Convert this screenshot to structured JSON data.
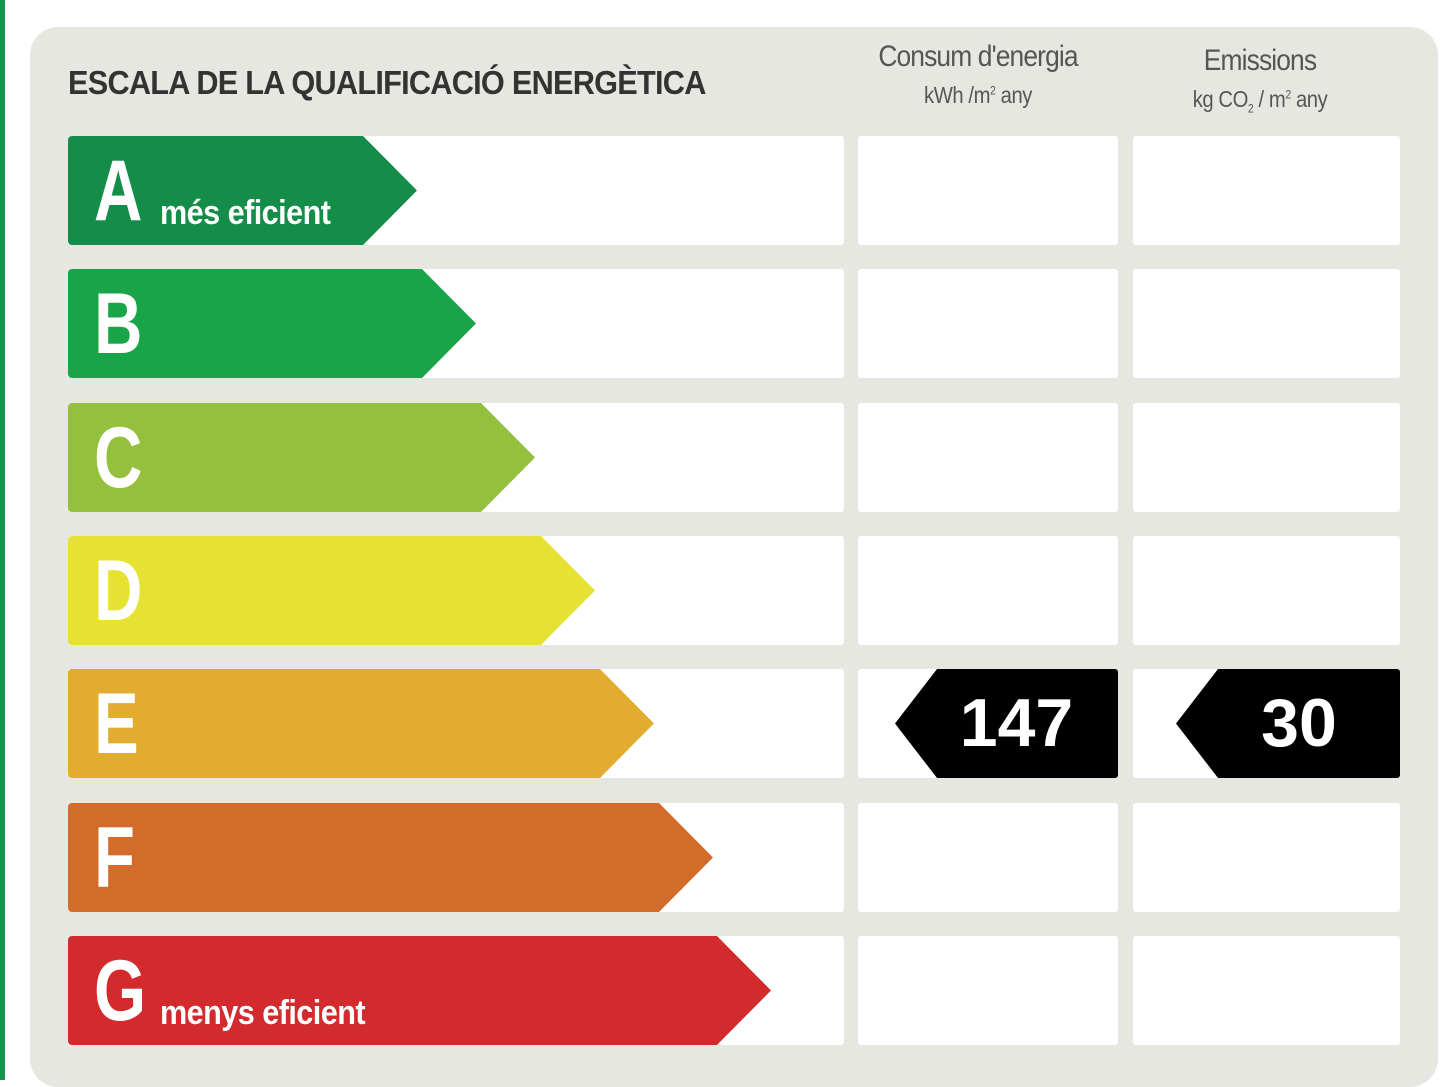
{
  "title": "ESCALA DE LA QUALIFICACIÓ ENERGÈTICA",
  "columns": {
    "consumption": {
      "label": "Consum d'energia",
      "unit_pre": "kWh /m",
      "unit_sup": "2",
      "unit_post": " any"
    },
    "emissions": {
      "label": "Emissions",
      "unit_pre": "kg CO",
      "unit_sub": "2",
      "unit_mid": " / m",
      "unit_sup": "2",
      "unit_post": " any"
    }
  },
  "ratings": [
    {
      "letter": "A",
      "note": "més eficient",
      "color": "#138d48"
    },
    {
      "letter": "B",
      "note": "",
      "color": "#19a447"
    },
    {
      "letter": "C",
      "note": "",
      "color": "#93c13d"
    },
    {
      "letter": "D",
      "note": "",
      "color": "#e6e233"
    },
    {
      "letter": "E",
      "note": "",
      "color": "#e2ac2f"
    },
    {
      "letter": "F",
      "note": "",
      "color": "#d36b2a"
    },
    {
      "letter": "G",
      "note": "menys eficient",
      "color": "#d32a2e"
    }
  ],
  "result": {
    "rating": "E",
    "consumption_value": "147",
    "emissions_value": "30"
  }
}
